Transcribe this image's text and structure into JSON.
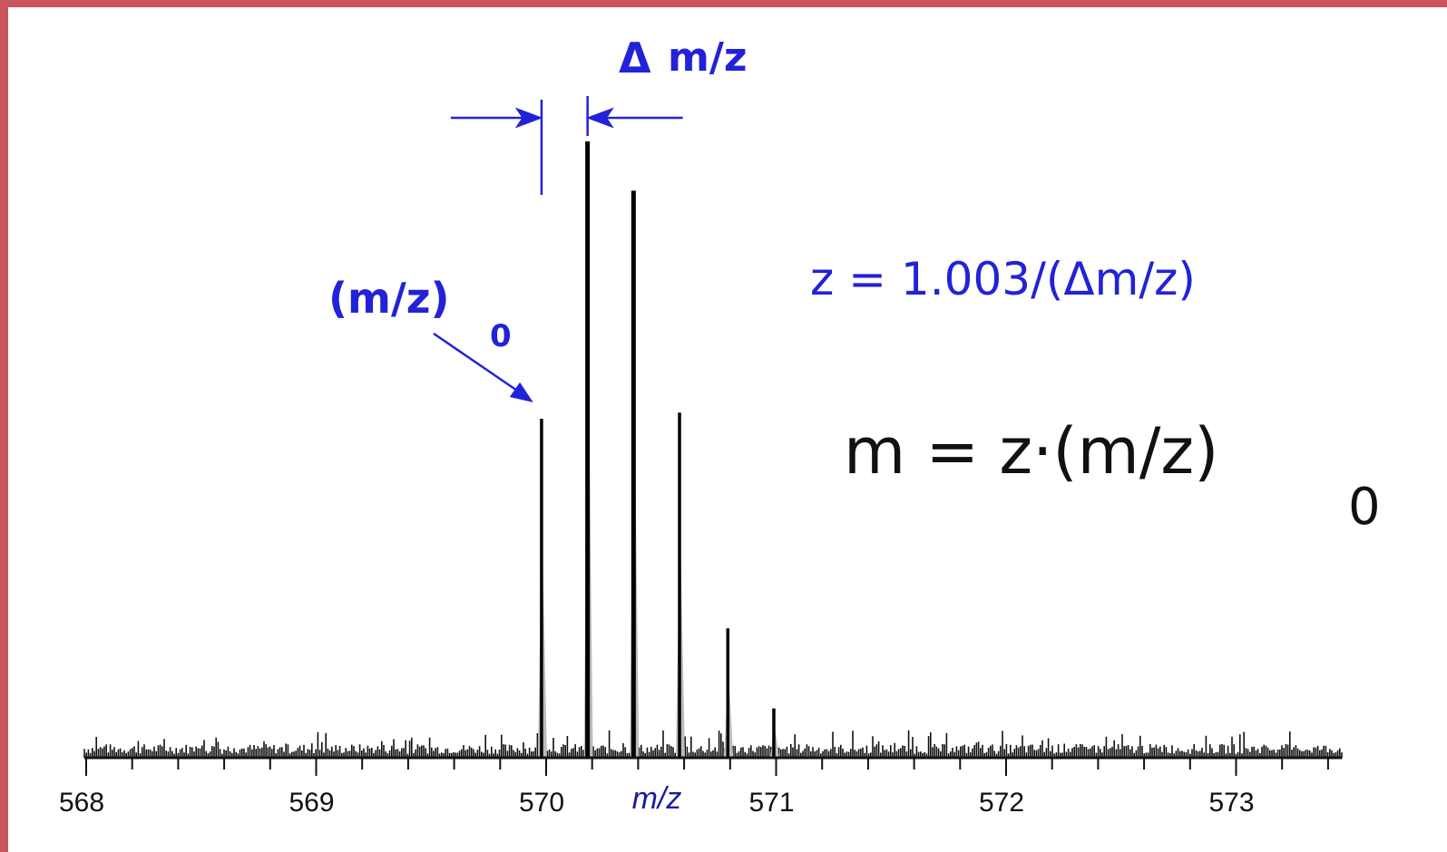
{
  "chart_data": {
    "type": "bar",
    "subtype": "mass-spectrum",
    "title": "",
    "xlabel": "m/z",
    "ylabel": "",
    "xlim": [
      568.0,
      573.5
    ],
    "ylim": [
      0,
      1.0
    ],
    "x_ticks": [
      568,
      569,
      570,
      571,
      572,
      573
    ],
    "x_tick_labels": [
      "568",
      "569",
      "570",
      "571",
      "572",
      "573"
    ],
    "minor_tick_step": 0.2,
    "grid": false,
    "legend": "none",
    "peaks": [
      {
        "x": 569.98,
        "y": 0.55
      },
      {
        "x": 570.18,
        "y": 1.0
      },
      {
        "x": 570.38,
        "y": 0.92
      },
      {
        "x": 570.58,
        "y": 0.56
      },
      {
        "x": 570.79,
        "y": 0.21
      },
      {
        "x": 570.99,
        "y": 0.08
      }
    ],
    "noise_level": 0.02,
    "annotations": {
      "monoisotopic_label": "(m/z)",
      "monoisotopic_subscript": "0",
      "delta_label": "m/z",
      "delta_symbol": "Δ",
      "charge_formula": "z = 1.003/(Δm/z)",
      "mass_formula": "m = z·(m/z)",
      "mass_formula_subscript": "0"
    },
    "colors": {
      "annotation": "#2222d8",
      "peaks": "#000000",
      "border": "#c9565c"
    }
  }
}
